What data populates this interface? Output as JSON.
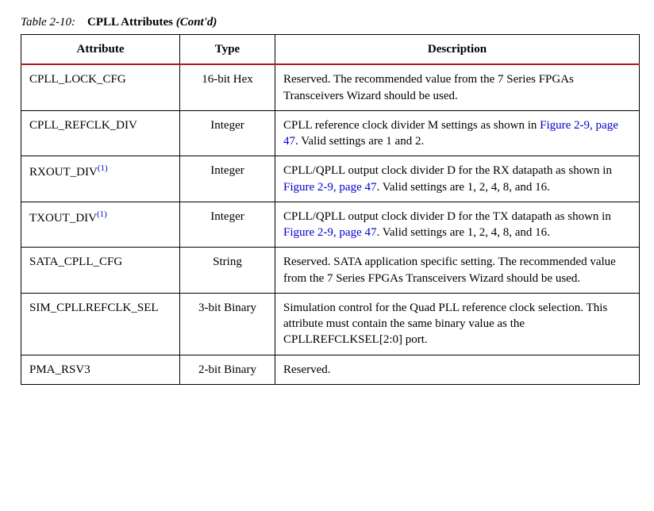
{
  "caption": {
    "label": "Table 2-10:",
    "title": "CPLL Attributes",
    "cont": "(Cont'd)"
  },
  "headers": {
    "attr": "Attribute",
    "type": "Type",
    "desc": "Description"
  },
  "link_ref": "Figure 2-9, page 47",
  "rows": [
    {
      "attr": "CPLL_LOCK_CFG",
      "sup": "",
      "type": "16-bit Hex",
      "desc_pre": "Reserved. The recommended value from the 7 Series FPGAs Transceivers Wizard should be used.",
      "desc_link": "",
      "desc_post": ""
    },
    {
      "attr": "CPLL_REFCLK_DIV",
      "sup": "",
      "type": "Integer",
      "desc_pre": "CPLL reference clock divider M settings as shown in ",
      "desc_link": "Figure 2-9, page 47",
      "desc_post": ". Valid settings are 1 and 2."
    },
    {
      "attr": "RXOUT_DIV",
      "sup": "(1)",
      "type": "Integer",
      "desc_pre": "CPLL/QPLL output clock divider D for the RX datapath as shown in ",
      "desc_link": "Figure 2-9, page 47",
      "desc_post": ". Valid settings are 1, 2, 4, 8, and 16."
    },
    {
      "attr": "TXOUT_DIV",
      "sup": "(1)",
      "type": "Integer",
      "desc_pre": "CPLL/QPLL output clock divider D for the TX datapath as shown in ",
      "desc_link": "Figure 2-9, page 47",
      "desc_post": ". Valid settings are 1, 2, 4, 8, and 16."
    },
    {
      "attr": "SATA_CPLL_CFG",
      "sup": "",
      "type": "String",
      "desc_pre": "Reserved. SATA application specific setting. The recommended value from the 7 Series FPGAs Transceivers Wizard should be used.",
      "desc_link": "",
      "desc_post": ""
    },
    {
      "attr": "SIM_CPLLREFCLK_SEL",
      "sup": "",
      "type": "3-bit Binary",
      "desc_pre": "Simulation control for the Quad PLL reference clock selection. This attribute must contain the same binary value as the CPLLREFCLKSEL[2:0] port.",
      "desc_link": "",
      "desc_post": ""
    },
    {
      "attr": "PMA_RSV3",
      "sup": "",
      "type": "2-bit Binary",
      "desc_pre": "Reserved.",
      "desc_link": "",
      "desc_post": ""
    }
  ]
}
